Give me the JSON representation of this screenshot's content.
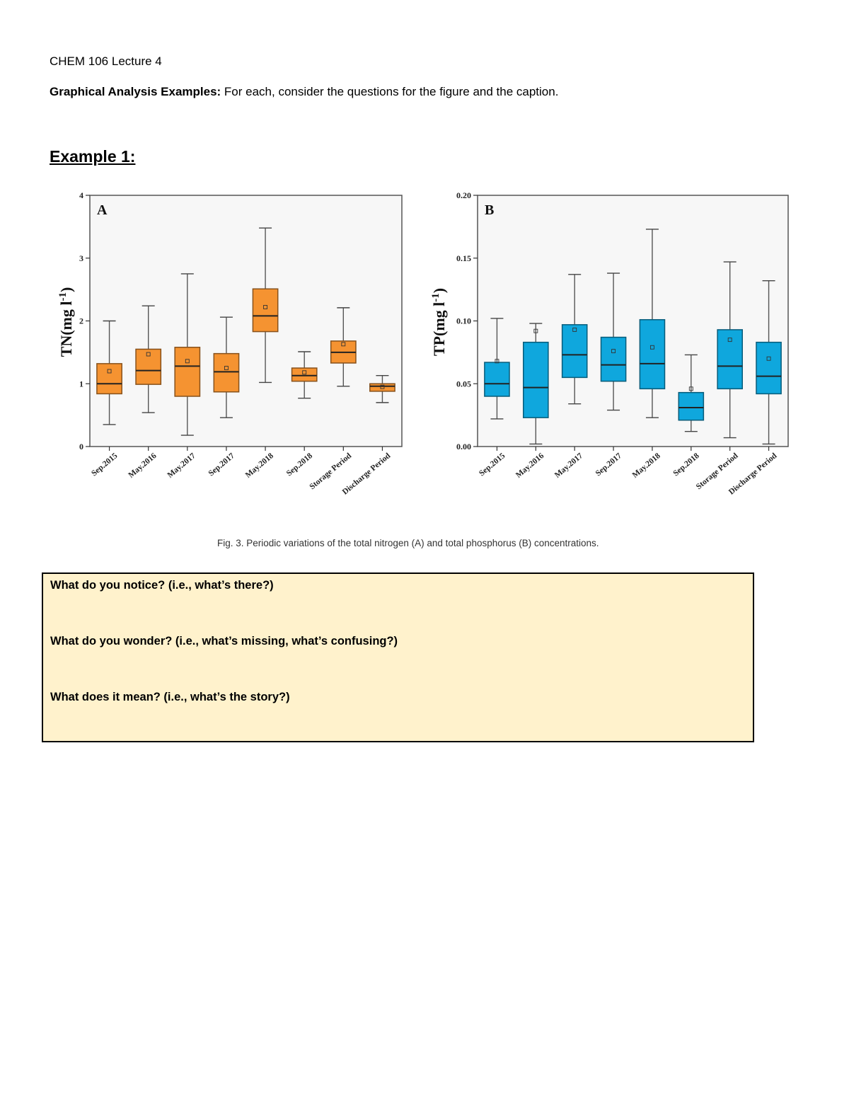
{
  "header": {
    "course": "CHEM 106 Lecture 4",
    "intro_bold": "Graphical Analysis Examples:",
    "intro_rest": " For each, consider the questions for the figure and the caption."
  },
  "example_title": "Example 1:",
  "figure_caption": "Fig. 3. Periodic variations of the total nitrogen (A) and total phosphorus (B) concentrations.",
  "chart_data": [
    {
      "type": "box",
      "panel_label": "A",
      "ylabel": "TN(mg l",
      "ylabel_sup": "-1",
      "ylabel_close": ")",
      "ylim": [
        0,
        4
      ],
      "yticks": [
        0,
        1,
        2,
        3,
        4
      ],
      "ytick_labels": [
        "0",
        "1",
        "2",
        "3",
        "4"
      ],
      "color": "#f59331",
      "categories": [
        "Sep.2015",
        "May.2016",
        "May.2017",
        "Sep.2017",
        "May.2018",
        "Sep.2018",
        "Storage Period",
        "Discharge Period"
      ],
      "boxes": [
        {
          "min": 0.35,
          "q1": 0.84,
          "median": 1.0,
          "q3": 1.32,
          "max": 2.0,
          "mean": 1.2
        },
        {
          "min": 0.54,
          "q1": 0.99,
          "median": 1.21,
          "q3": 1.55,
          "max": 2.24,
          "mean": 1.47
        },
        {
          "min": 0.18,
          "q1": 0.8,
          "median": 1.28,
          "q3": 1.58,
          "max": 2.75,
          "mean": 1.36
        },
        {
          "min": 0.46,
          "q1": 0.87,
          "median": 1.19,
          "q3": 1.48,
          "max": 2.06,
          "mean": 1.25
        },
        {
          "min": 1.02,
          "q1": 1.83,
          "median": 2.08,
          "q3": 2.51,
          "max": 3.48,
          "mean": 2.22
        },
        {
          "min": 0.77,
          "q1": 1.04,
          "median": 1.13,
          "q3": 1.25,
          "max": 1.51,
          "mean": 1.18
        },
        {
          "min": 0.96,
          "q1": 1.33,
          "median": 1.5,
          "q3": 1.68,
          "max": 2.21,
          "mean": 1.63
        },
        {
          "min": 0.7,
          "q1": 0.88,
          "median": 0.96,
          "q3": 1.0,
          "max": 1.13,
          "mean": 0.95
        }
      ]
    },
    {
      "type": "box",
      "panel_label": "B",
      "ylabel": "TP(mg l",
      "ylabel_sup": "-1",
      "ylabel_close": ")",
      "ylim": [
        0,
        0.2
      ],
      "yticks": [
        0,
        0.05,
        0.1,
        0.15,
        0.2
      ],
      "ytick_labels": [
        "0.00",
        "0.05",
        "0.10",
        "0.15",
        "0.20"
      ],
      "color": "#0fa7dd",
      "categories": [
        "Sep.2015",
        "May.2016",
        "May.2017",
        "Sep.2017",
        "May.2018",
        "Sep.2018",
        "Storage Period",
        "Discharge Period"
      ],
      "boxes": [
        {
          "min": 0.022,
          "q1": 0.04,
          "median": 0.05,
          "q3": 0.067,
          "max": 0.102,
          "mean": 0.068
        },
        {
          "min": 0.002,
          "q1": 0.023,
          "median": 0.047,
          "q3": 0.083,
          "max": 0.098,
          "mean": 0.092
        },
        {
          "min": 0.034,
          "q1": 0.055,
          "median": 0.073,
          "q3": 0.097,
          "max": 0.137,
          "mean": 0.093
        },
        {
          "min": 0.029,
          "q1": 0.052,
          "median": 0.065,
          "q3": 0.087,
          "max": 0.138,
          "mean": 0.076
        },
        {
          "min": 0.023,
          "q1": 0.046,
          "median": 0.066,
          "q3": 0.101,
          "max": 0.173,
          "mean": 0.079
        },
        {
          "min": 0.012,
          "q1": 0.021,
          "median": 0.031,
          "q3": 0.043,
          "max": 0.073,
          "mean": 0.046
        },
        {
          "min": 0.007,
          "q1": 0.046,
          "median": 0.064,
          "q3": 0.093,
          "max": 0.147,
          "mean": 0.085
        },
        {
          "min": 0.002,
          "q1": 0.042,
          "median": 0.056,
          "q3": 0.083,
          "max": 0.132,
          "mean": 0.07
        }
      ]
    }
  ],
  "questions": {
    "notice": "What do you notice? (i.e., what’s there?)",
    "wonder": "What do you wonder? (i.e., what’s missing, what’s confusing?)",
    "mean": "What does it mean? (i.e., what’s the story?)"
  }
}
